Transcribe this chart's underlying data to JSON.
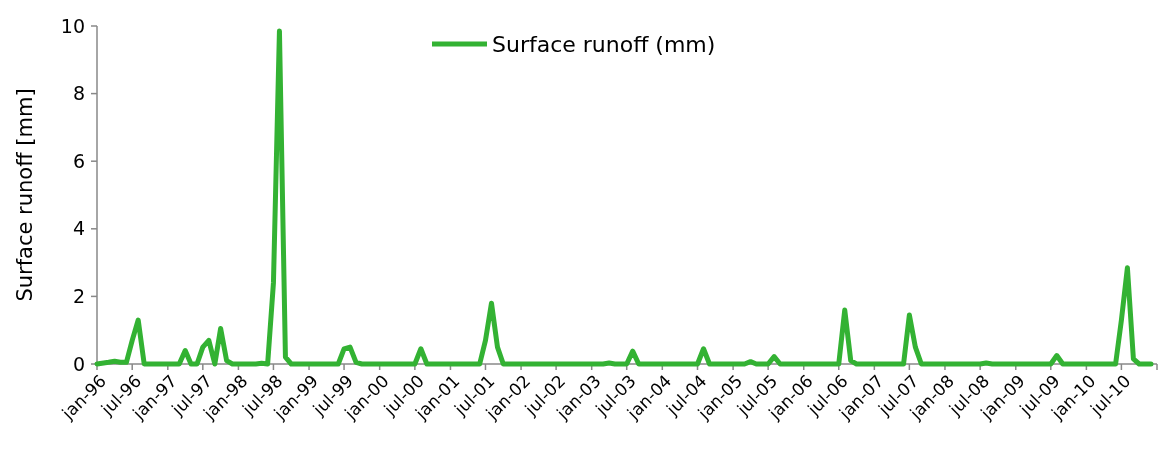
{
  "chart_data": {
    "type": "line",
    "ylabel": "Surface runoff [mm]",
    "legend": "top",
    "grid": false,
    "marker": "none",
    "line_style": "solid",
    "xlim": [
      "1996-01",
      "2011-01"
    ],
    "ylim": [
      0,
      10
    ],
    "yticks": [
      0,
      2,
      4,
      6,
      8,
      10
    ],
    "xticks": [
      {
        "value": "1996-01",
        "label": "jan-96"
      },
      {
        "value": "1996-07",
        "label": "jul-96"
      },
      {
        "value": "1997-01",
        "label": "jan-97"
      },
      {
        "value": "1997-07",
        "label": "jul-97"
      },
      {
        "value": "1998-01",
        "label": "jan-98"
      },
      {
        "value": "1998-07",
        "label": "jul-98"
      },
      {
        "value": "1999-01",
        "label": "jan-99"
      },
      {
        "value": "1999-07",
        "label": "jul-99"
      },
      {
        "value": "2000-01",
        "label": "jan-00"
      },
      {
        "value": "2000-07",
        "label": "jul-00"
      },
      {
        "value": "2001-01",
        "label": "jan-01"
      },
      {
        "value": "2001-07",
        "label": "jul-01"
      },
      {
        "value": "2002-01",
        "label": "jan-02"
      },
      {
        "value": "2002-07",
        "label": "jul-02"
      },
      {
        "value": "2003-01",
        "label": "jan-03"
      },
      {
        "value": "2003-07",
        "label": "jul-03"
      },
      {
        "value": "2004-01",
        "label": "jan-04"
      },
      {
        "value": "2004-07",
        "label": "jul-04"
      },
      {
        "value": "2005-01",
        "label": "jan-05"
      },
      {
        "value": "2005-07",
        "label": "jul-05"
      },
      {
        "value": "2006-01",
        "label": "jan-06"
      },
      {
        "value": "2006-07",
        "label": "jul-06"
      },
      {
        "value": "2007-01",
        "label": "jan-07"
      },
      {
        "value": "2007-07",
        "label": "jul-07"
      },
      {
        "value": "2008-01",
        "label": "jan-08"
      },
      {
        "value": "2008-07",
        "label": "jul-08"
      },
      {
        "value": "2009-01",
        "label": "jan-09"
      },
      {
        "value": "2009-07",
        "label": "jul-09"
      },
      {
        "value": "2010-01",
        "label": "jan-10"
      },
      {
        "value": "2010-07",
        "label": "jul-10"
      },
      {
        "value": "2011-01",
        "label": null
      }
    ],
    "series": [
      {
        "name": "Surface runoff (mm)",
        "color": "#33b233",
        "x": [
          "1996-01",
          "1996-03",
          "1996-04",
          "1996-05",
          "1996-06",
          "1996-07",
          "1996-08",
          "1996-09",
          "1997-03",
          "1997-04",
          "1997-05",
          "1997-06",
          "1997-07",
          "1997-08",
          "1997-09",
          "1997-10",
          "1997-11",
          "1997-12",
          "1998-04",
          "1998-05",
          "1998-06",
          "1998-07",
          "1998-08",
          "1998-09",
          "1998-10",
          "1999-06",
          "1999-07",
          "1999-08",
          "1999-09",
          "1999-10",
          "2000-07",
          "2000-08",
          "2000-09",
          "2001-06",
          "2001-07",
          "2001-08",
          "2001-09",
          "2001-10",
          "2003-03",
          "2003-04",
          "2003-05",
          "2003-07",
          "2003-08",
          "2003-09",
          "2004-07",
          "2004-08",
          "2004-09",
          "2005-03",
          "2005-04",
          "2005-05",
          "2005-07",
          "2005-08",
          "2005-09",
          "2006-07",
          "2006-08",
          "2006-09",
          "2006-10",
          "2007-06",
          "2007-07",
          "2007-08",
          "2007-09",
          "2008-07",
          "2008-08",
          "2008-09",
          "2009-07",
          "2009-08",
          "2009-09",
          "2010-06",
          "2010-07",
          "2010-08",
          "2010-09",
          "2010-10",
          "2010-12"
        ],
        "values": [
          0,
          0.05,
          0.08,
          0.05,
          0.05,
          0.7,
          1.3,
          0,
          0,
          0.4,
          0,
          0,
          0.5,
          0.7,
          0,
          1.05,
          0.1,
          0,
          0,
          0.02,
          0,
          2.4,
          9.85,
          0.2,
          0,
          0,
          0.45,
          0.5,
          0.05,
          0,
          0,
          0.45,
          0,
          0,
          0.7,
          1.8,
          0.5,
          0,
          0,
          0.03,
          0,
          0,
          0.38,
          0,
          0,
          0.45,
          0,
          0,
          0.07,
          0,
          0,
          0.22,
          0,
          0,
          1.6,
          0.1,
          0,
          0,
          1.45,
          0.5,
          0,
          0,
          0.03,
          0,
          0,
          0.25,
          0,
          0,
          1.3,
          2.85,
          0.15,
          0,
          0
        ]
      }
    ]
  }
}
